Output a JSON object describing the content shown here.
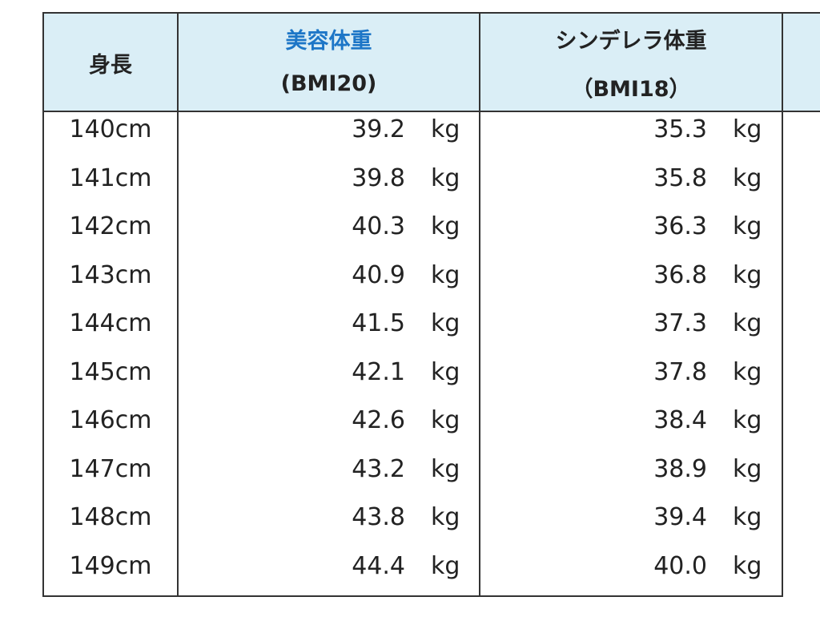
{
  "table": {
    "header": {
      "height": "身長",
      "beauty": {
        "title": "美容体重",
        "sub": "(BMI20)"
      },
      "cinderella": {
        "title": "シンデレラ体重",
        "sub": "（BMI18）"
      }
    },
    "unit": "kg",
    "rows": [
      [
        "140cm",
        "39.2",
        "35.3"
      ],
      [
        "141cm",
        "39.8",
        "35.8"
      ],
      [
        "142cm",
        "40.3",
        "36.3"
      ],
      [
        "143cm",
        "40.9",
        "36.8"
      ],
      [
        "144cm",
        "41.5",
        "37.3"
      ],
      [
        "145cm",
        "42.1",
        "37.8"
      ],
      [
        "146cm",
        "42.6",
        "38.4"
      ],
      [
        "147cm",
        "43.2",
        "38.9"
      ],
      [
        "148cm",
        "43.8",
        "39.4"
      ],
      [
        "149cm",
        "44.4",
        "40.0"
      ]
    ]
  }
}
